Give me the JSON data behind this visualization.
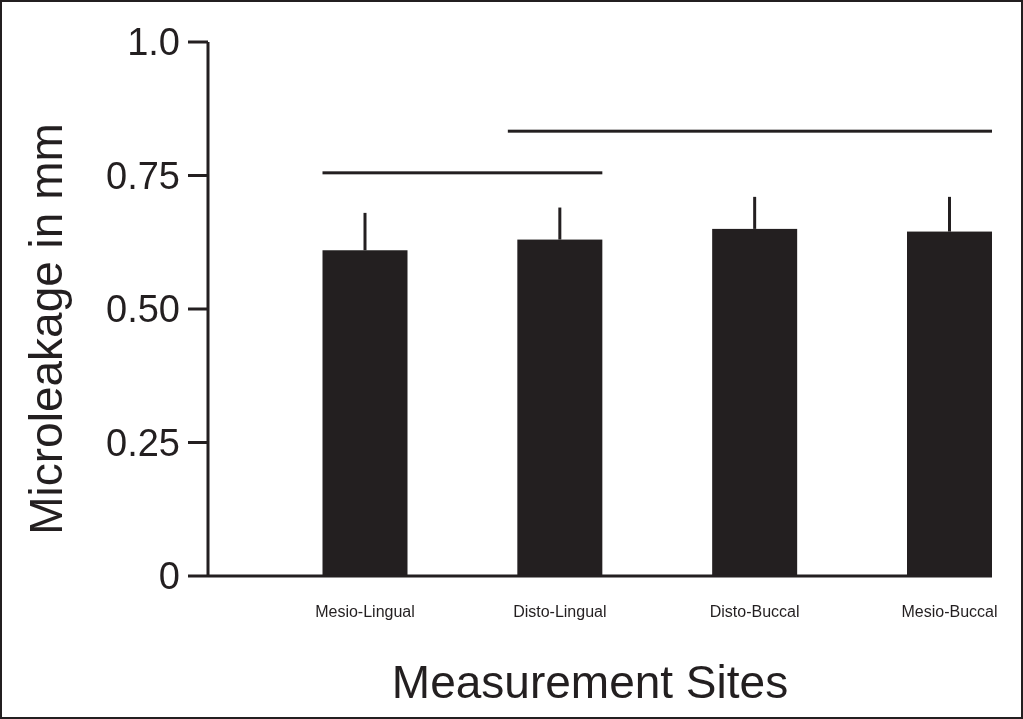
{
  "chart_data": {
    "type": "bar",
    "categories": [
      "Mesio-Lingual",
      "Disto-Lingual",
      "Disto-Buccal",
      "Mesio-Buccal"
    ],
    "values": [
      0.61,
      0.63,
      0.65,
      0.645
    ],
    "errors": [
      [
        0.61,
        0.68
      ],
      [
        0.63,
        0.69
      ],
      [
        0.65,
        0.71
      ],
      [
        0.645,
        0.71
      ]
    ],
    "color": "#231f20",
    "ylim": [
      0,
      1.0
    ],
    "yticks": [
      0,
      0.25,
      {
        "value": 0.5,
        "label": "0.50"
      },
      0.75,
      {
        "value": 1.0,
        "label": "1.0"
      }
    ],
    "xlabel": "Measurement  Sites",
    "ylabel": "Microleakage in mm",
    "grid": false
  }
}
